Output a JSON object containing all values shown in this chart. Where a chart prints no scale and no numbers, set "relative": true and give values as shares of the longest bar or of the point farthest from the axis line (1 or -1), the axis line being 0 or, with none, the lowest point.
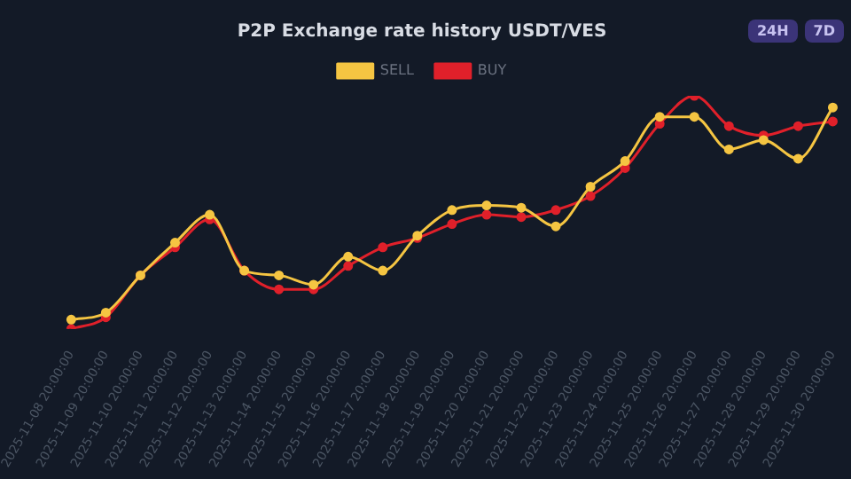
{
  "chart_data": {
    "type": "line",
    "title": "P2P Exchange rate history USDT/VES",
    "relative": true,
    "legend": "top",
    "marker": "circle",
    "line_style": "solid",
    "tick_labels": "x",
    "categories": [
      "2025-11-08 20:00:00",
      "2025-11-09 20:00:00",
      "2025-11-10 20:00:00",
      "2025-11-11 20:00:00",
      "2025-11-12 20:00:00",
      "2025-11-13 20:00:00",
      "2025-11-14 20:00:00",
      "2025-11-15 20:00:00",
      "2025-11-16 20:00:00",
      "2025-11-17 20:00:00",
      "2025-11-18 20:00:00",
      "2025-11-19 20:00:00",
      "2025-11-20 20:00:00",
      "2025-11-21 20:00:00",
      "2025-11-22 20:00:00",
      "2025-11-23 20:00:00",
      "2025-11-24 20:00:00",
      "2025-11-25 20:00:00",
      "2025-11-26 20:00:00",
      "2025-11-27 20:00:00",
      "2025-11-28 20:00:00",
      "2025-11-29 20:00:00",
      "2025-11-30 20:00:00"
    ],
    "series": [
      {
        "name": "SELL",
        "color": "#f5c542",
        "values": [
          0.04,
          0.07,
          0.23,
          0.37,
          0.49,
          0.25,
          0.23,
          0.19,
          0.31,
          0.25,
          0.4,
          0.51,
          0.53,
          0.52,
          0.44,
          0.61,
          0.72,
          0.91,
          0.91,
          0.77,
          0.81,
          0.73,
          0.95
        ]
      },
      {
        "name": "BUY",
        "color": "#e0202a",
        "values": [
          0,
          0.05,
          0.23,
          0.35,
          0.47,
          0.25,
          0.17,
          0.17,
          0.27,
          0.35,
          0.39,
          0.45,
          0.49,
          0.48,
          0.51,
          0.57,
          0.69,
          0.88,
          1,
          0.87,
          0.83,
          0.87,
          0.89
        ]
      }
    ],
    "annotations": [
      "24H",
      "7D"
    ]
  }
}
